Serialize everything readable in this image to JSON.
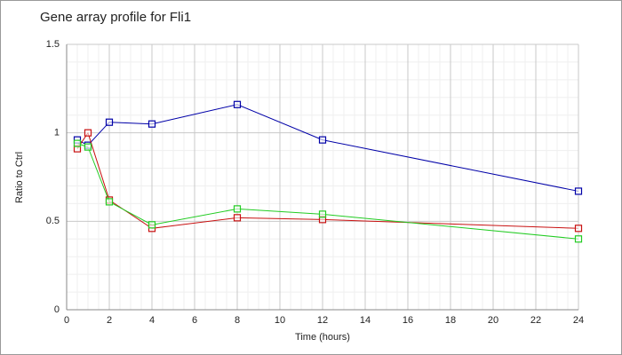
{
  "chart_data": {
    "type": "line",
    "title": "Gene array profile for Fli1",
    "x_label": "Time (hours)",
    "y_label": "Ratio to Ctrl",
    "x": [
      0.5,
      1,
      2,
      4,
      8,
      12,
      24
    ],
    "series": [
      {
        "color": "#0000a8",
        "values": [
          0.96,
          0.93,
          1.06,
          1.05,
          1.16,
          0.96,
          0.67
        ]
      },
      {
        "color": "#c81010",
        "values": [
          0.91,
          1.0,
          0.62,
          0.46,
          0.52,
          0.51,
          0.46
        ]
      },
      {
        "color": "#22cc22",
        "values": [
          0.94,
          0.92,
          0.61,
          0.48,
          0.57,
          0.54,
          0.4
        ]
      }
    ],
    "xlim": [
      0,
      24
    ],
    "xticks": [
      0,
      2,
      4,
      6,
      8,
      10,
      12,
      14,
      16,
      18,
      20,
      22,
      24
    ],
    "ylim": [
      0,
      1.5
    ],
    "yticks": [
      0,
      0.5,
      1,
      1.5
    ],
    "grid": true,
    "minor_grid": true
  }
}
